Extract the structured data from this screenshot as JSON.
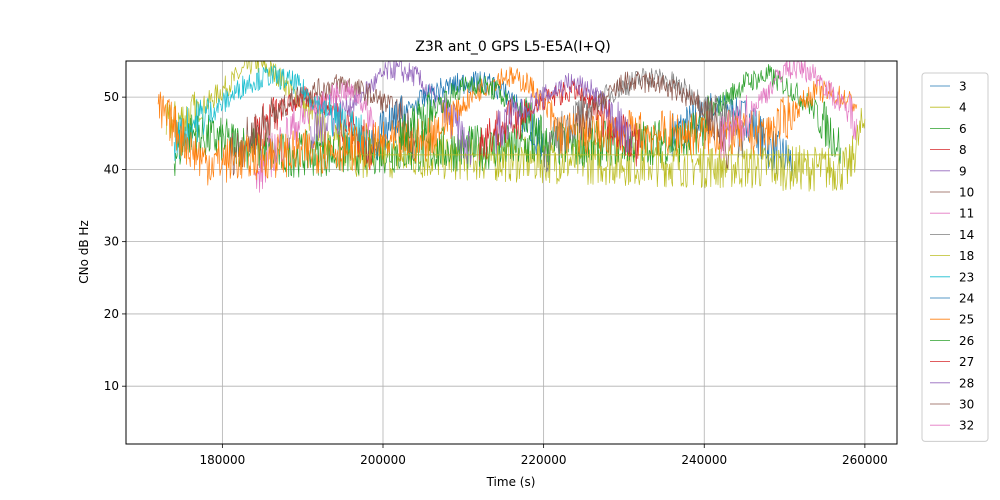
{
  "chart_data": {
    "type": "line",
    "title": "Z3R ant_0 GPS L5-E5A(I+Q)",
    "xlabel": "Time (s)",
    "ylabel": "CNo dB Hz",
    "xlim": [
      168000,
      264000
    ],
    "ylim": [
      2,
      55
    ],
    "xticks": [
      180000,
      200000,
      220000,
      240000,
      260000
    ],
    "yticks": [
      10,
      20,
      30,
      40,
      50
    ],
    "grid": true,
    "legend_position": "right",
    "series": [
      {
        "name": "3",
        "color": "#1f77b4",
        "points": [
          [
            236000,
            45
          ],
          [
            240000,
            47
          ],
          [
            242000,
            49
          ],
          [
            245000,
            48
          ],
          [
            248000,
            43
          ],
          [
            251000,
            41
          ]
        ]
      },
      {
        "name": "4",
        "color": "#bcbd22",
        "points": [
          [
            173000,
            46
          ],
          [
            177000,
            48
          ],
          [
            181000,
            52
          ],
          [
            184000,
            55
          ],
          [
            187000,
            53
          ],
          [
            190000,
            49
          ],
          [
            193000,
            45
          ],
          [
            197000,
            42
          ],
          [
            258000,
            40
          ],
          [
            260000,
            47
          ]
        ]
      },
      {
        "name": "6",
        "color": "#2ca02c",
        "points": [
          [
            174000,
            42
          ],
          [
            176000,
            45
          ],
          [
            180000,
            44
          ],
          [
            184000,
            43
          ],
          [
            187000,
            42
          ],
          [
            238000,
            44
          ],
          [
            242000,
            49
          ],
          [
            245000,
            52
          ],
          [
            248000,
            53
          ],
          [
            251000,
            51
          ],
          [
            254000,
            48
          ],
          [
            257000,
            43
          ]
        ]
      },
      {
        "name": "8",
        "color": "#d62728",
        "points": [
          [
            184000,
            45
          ],
          [
            187000,
            48
          ],
          [
            190000,
            50
          ],
          [
            193000,
            49
          ],
          [
            196000,
            46
          ],
          [
            199000,
            42
          ]
        ]
      },
      {
        "name": "9",
        "color": "#9467bd",
        "points": [
          [
            191000,
            44
          ],
          [
            193000,
            47
          ],
          [
            196000,
            49
          ],
          [
            199000,
            52
          ],
          [
            201000,
            54
          ],
          [
            204000,
            53
          ],
          [
            207000,
            49
          ],
          [
            209000,
            46
          ],
          [
            211000,
            42
          ]
        ]
      },
      {
        "name": "10",
        "color": "#8c564b",
        "points": [
          [
            181000,
            42
          ],
          [
            183000,
            44
          ],
          [
            186000,
            47
          ],
          [
            189000,
            50
          ],
          [
            192000,
            51
          ],
          [
            195000,
            52
          ],
          [
            199000,
            50
          ],
          [
            202000,
            48
          ],
          [
            204000,
            44
          ]
        ]
      },
      {
        "name": "11",
        "color": "#e377c2",
        "points": [
          [
            184000,
            38
          ],
          [
            186000,
            42
          ],
          [
            189000,
            46
          ],
          [
            192000,
            49
          ],
          [
            195000,
            51
          ],
          [
            197000,
            50
          ],
          [
            199000,
            46
          ]
        ]
      },
      {
        "name": "14",
        "color": "#7f7f7f",
        "points": [
          [
            220000,
            42
          ],
          [
            223000,
            46
          ],
          [
            226000,
            49
          ],
          [
            229000,
            51
          ],
          [
            233000,
            53
          ],
          [
            236000,
            52
          ],
          [
            239000,
            50
          ],
          [
            242000,
            47
          ],
          [
            245000,
            44
          ]
        ]
      },
      {
        "name": "18",
        "color": "#bcbd22",
        "points": [
          [
            197000,
            42
          ],
          [
            257000,
            42
          ]
        ]
      },
      {
        "name": "23",
        "color": "#17becf",
        "points": [
          [
            174000,
            44
          ],
          [
            177000,
            47
          ],
          [
            180000,
            49
          ],
          [
            183000,
            52
          ],
          [
            186000,
            53
          ],
          [
            189000,
            52
          ],
          [
            192000,
            49
          ],
          [
            195000,
            46
          ],
          [
            198000,
            44
          ]
        ]
      },
      {
        "name": "24",
        "color": "#1f77b4",
        "points": [
          [
            198000,
            43
          ],
          [
            201000,
            46
          ],
          [
            204000,
            49
          ],
          [
            207000,
            51
          ],
          [
            210000,
            52
          ],
          [
            213000,
            52
          ],
          [
            216000,
            50
          ],
          [
            218000,
            47
          ],
          [
            220000,
            43
          ]
        ]
      },
      {
        "name": "25",
        "color": "#ff7f0e",
        "points": [
          [
            172000,
            48
          ],
          [
            174000,
            46
          ],
          [
            176000,
            43
          ],
          [
            178000,
            41
          ],
          [
            205000,
            44
          ],
          [
            208000,
            47
          ],
          [
            212000,
            51
          ],
          [
            215000,
            53
          ],
          [
            218000,
            52
          ],
          [
            220000,
            49
          ],
          [
            222000,
            45
          ],
          [
            248000,
            45
          ],
          [
            251000,
            48
          ],
          [
            254000,
            51
          ],
          [
            257000,
            50
          ],
          [
            259000,
            49
          ]
        ]
      },
      {
        "name": "26",
        "color": "#2ca02c",
        "points": [
          [
            202000,
            44
          ],
          [
            205000,
            47
          ],
          [
            208000,
            50
          ],
          [
            211000,
            52
          ],
          [
            214000,
            51
          ],
          [
            217000,
            48
          ],
          [
            220000,
            45
          ]
        ]
      },
      {
        "name": "27",
        "color": "#d62728",
        "points": [
          [
            212000,
            44
          ],
          [
            215000,
            46
          ],
          [
            218000,
            48
          ],
          [
            221000,
            50
          ],
          [
            224000,
            51
          ],
          [
            227000,
            48
          ],
          [
            230000,
            45
          ],
          [
            232000,
            43
          ]
        ]
      },
      {
        "name": "28",
        "color": "#9467bd",
        "points": [
          [
            214000,
            45
          ],
          [
            217000,
            48
          ],
          [
            220000,
            50
          ],
          [
            223000,
            52
          ],
          [
            226000,
            51
          ],
          [
            229000,
            47
          ],
          [
            231000,
            43
          ]
        ]
      },
      {
        "name": "30",
        "color": "#8c564b",
        "points": [
          [
            224000,
            46
          ],
          [
            227000,
            49
          ],
          [
            230000,
            52
          ],
          [
            234000,
            52
          ],
          [
            238000,
            50
          ],
          [
            241000,
            47
          ],
          [
            243000,
            42
          ]
        ]
      },
      {
        "name": "32",
        "color": "#e377c2",
        "points": [
          [
            242000,
            44
          ],
          [
            245000,
            47
          ],
          [
            248000,
            51
          ],
          [
            250000,
            54
          ],
          [
            252000,
            54
          ],
          [
            254000,
            53
          ],
          [
            257000,
            49
          ],
          [
            259000,
            47
          ]
        ]
      }
    ]
  }
}
